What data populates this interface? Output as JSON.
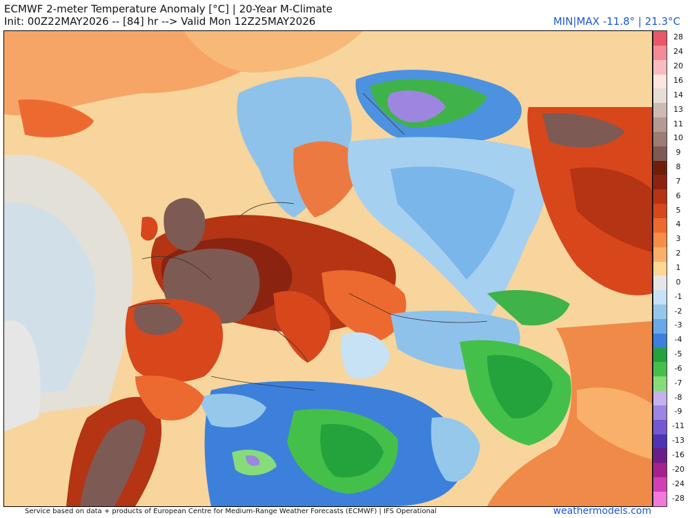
{
  "header": {
    "title": "ECMWF 2-meter Temperature Anomaly [°C] | 20-Year M-Climate",
    "subtitle": "Init: 00Z22MAY2026 -- [84] hr --> Valid Mon 12Z25MAY2026",
    "minmax": "MIN|MAX -11.8° | 21.3°C"
  },
  "legend": {
    "labels": [
      "28",
      "24",
      "20",
      "16",
      "14",
      "13",
      "11",
      "10",
      "9",
      "8",
      "7",
      "6",
      "5",
      "4",
      "3",
      "2",
      "1",
      "0",
      "-1",
      "-2",
      "-3",
      "-4",
      "-5",
      "-6",
      "-7",
      "-8",
      "-9",
      "-11",
      "-13",
      "-16",
      "-20",
      "-24",
      "-28"
    ],
    "colors": [
      "#e8586a",
      "#f28c96",
      "#f8bcc0",
      "#fbe6e0",
      "#e6dcd8",
      "#cdbab4",
      "#b49a94",
      "#9c7c76",
      "#7e5a54",
      "#6e1f0a",
      "#8a2410",
      "#b43414",
      "#d8461c",
      "#ec6a30",
      "#f58e48",
      "#f8b06a",
      "#fbd894",
      "#e6e6e6",
      "#c6e2f4",
      "#96c8ec",
      "#6aa8e6",
      "#3c80dc",
      "#24a23c",
      "#44c04a",
      "#86dc7a",
      "#c4b2ec",
      "#9c86e0",
      "#7458d2",
      "#4c34b4",
      "#6a1e8a",
      "#a6208e",
      "#d040b4",
      "#f07ad8"
    ]
  },
  "footer": {
    "credit": "Service based on data + products of European Centre for Medium-Range Weather Forecasts (ECMWF) | IFS Operational",
    "brand": "weathermodels.com"
  }
}
